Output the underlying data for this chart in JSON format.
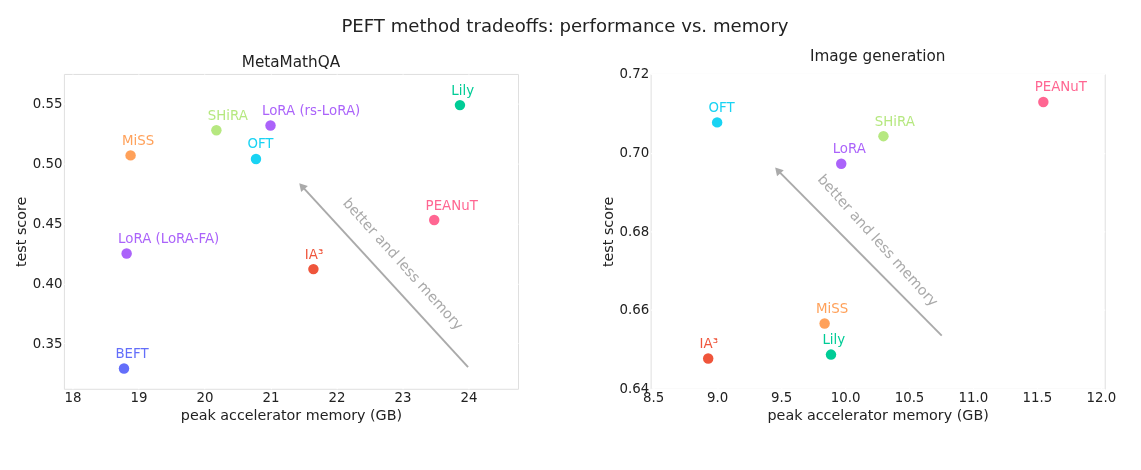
{
  "chart_data": [
    {
      "type": "scatter",
      "title": "MetaMathQA",
      "xlabel": "peak accelerator memory (GB)",
      "ylabel": "test score",
      "annotations": [
        "PEFT method tradeoffs: performance vs. memory",
        "better and less memory"
      ],
      "xlim": [
        17.87,
        24.75
      ],
      "ylim": [
        0.312,
        0.575
      ],
      "xticks": [
        18,
        19,
        20,
        21,
        22,
        23,
        24
      ],
      "yticks": [
        0.35,
        {
          "value": 0.4,
          "label": "0.40"
        },
        0.45,
        {
          "value": 0.5,
          "label": "0.50"
        },
        0.55
      ],
      "grid": true,
      "legend": false,
      "marker": "circle",
      "series": [
        {
          "name": "BEFT",
          "color": "#636efa",
          "x": [
            18.78
          ],
          "values": [
            0.329
          ]
        },
        {
          "name": "LoRA (LoRA-FA)",
          "color": "#ab63fa",
          "x": [
            18.82
          ],
          "values": [
            0.425
          ]
        },
        {
          "name": "MiSS",
          "color": "#ffa15a",
          "x": [
            18.88
          ],
          "values": [
            0.507
          ]
        },
        {
          "name": "SHiRA",
          "color": "#b6e880",
          "x": [
            20.18
          ],
          "values": [
            0.528
          ]
        },
        {
          "name": "LoRA (rs-LoRA)",
          "color": "#ab63fa",
          "x": [
            21.0
          ],
          "values": [
            0.532
          ]
        },
        {
          "name": "OFT",
          "color": "#19d3f3",
          "x": [
            20.78
          ],
          "values": [
            0.504
          ]
        },
        {
          "name": "IA³",
          "color": "#ef553b",
          "x": [
            21.65
          ],
          "values": [
            0.412
          ]
        },
        {
          "name": "PEANuT",
          "color": "#ff6692",
          "x": [
            23.48
          ],
          "values": [
            0.453
          ]
        },
        {
          "name": "Lily",
          "color": "#00cc96",
          "x": [
            23.87
          ],
          "values": [
            0.549
          ]
        }
      ]
    },
    {
      "type": "scatter",
      "title": "Image generation",
      "xlabel": "peak accelerator memory (GB)",
      "ylabel": "test score",
      "annotations": [
        "better and less memory"
      ],
      "xlim": [
        8.48,
        12.03
      ],
      "ylim": [
        0.64,
        0.72
      ],
      "xticks": [
        8.5,
        {
          "value": 9,
          "label": "9.0"
        },
        9.5,
        {
          "value": 10,
          "label": "10.0"
        },
        10.5,
        {
          "value": 11,
          "label": "11.0"
        },
        11.5,
        {
          "value": 12,
          "label": "12.0"
        }
      ],
      "yticks": [
        0.64,
        0.66,
        0.68,
        {
          "value": 0.7,
          "label": "0.70"
        },
        0.72
      ],
      "grid": true,
      "legend": false,
      "marker": "circle",
      "series": [
        {
          "name": "IA³",
          "color": "#ef553b",
          "x": [
            8.93
          ],
          "values": [
            0.6477
          ]
        },
        {
          "name": "OFT",
          "color": "#19d3f3",
          "x": [
            9.0
          ],
          "values": [
            0.7077
          ]
        },
        {
          "name": "MiSS",
          "color": "#ffa15a",
          "x": [
            9.84
          ],
          "values": [
            0.6566
          ]
        },
        {
          "name": "Lily",
          "color": "#00cc96",
          "x": [
            9.89
          ],
          "values": [
            0.6487
          ]
        },
        {
          "name": "LoRA",
          "color": "#ab63fa",
          "x": [
            9.97
          ],
          "values": [
            0.6972
          ]
        },
        {
          "name": "SHiRA",
          "color": "#b6e880",
          "x": [
            10.3
          ],
          "values": [
            0.7042
          ]
        },
        {
          "name": "PEANuT",
          "color": "#ff6692",
          "x": [
            11.55
          ],
          "values": [
            0.7129
          ]
        }
      ]
    }
  ]
}
